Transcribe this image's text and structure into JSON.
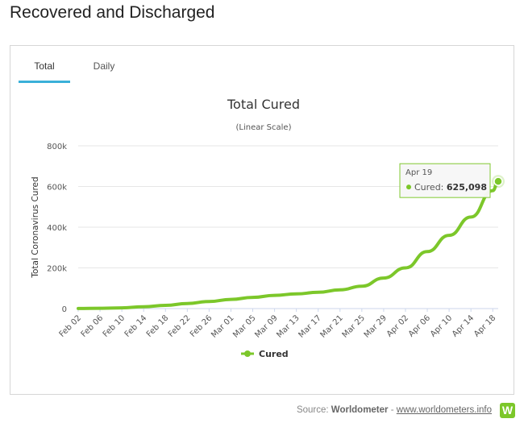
{
  "page": {
    "title": "Recovered and Discharged"
  },
  "tabs": [
    {
      "label": "Total",
      "active": true
    },
    {
      "label": "Daily",
      "active": false
    }
  ],
  "chart_data": {
    "type": "line",
    "title": "Total Cured",
    "subtitle": "(Linear Scale)",
    "ylabel": "Total Coronavirus Cured",
    "xlabel": "",
    "ylim": [
      0,
      800000
    ],
    "y_ticks": [
      0,
      200000,
      400000,
      600000,
      800000
    ],
    "y_tick_labels": [
      "0",
      "200k",
      "400k",
      "600k",
      "800k"
    ],
    "x_tick_labels": [
      "Feb 02",
      "Feb 06",
      "Feb 10",
      "Feb 14",
      "Feb 18",
      "Feb 22",
      "Feb 26",
      "Mar 01",
      "Mar 05",
      "Mar 09",
      "Mar 13",
      "Mar 17",
      "Mar 21",
      "Mar 25",
      "Mar 29",
      "Apr 02",
      "Apr 06",
      "Apr 10",
      "Apr 14",
      "Apr 18"
    ],
    "grid": true,
    "legend": {
      "position": "bottom-center"
    },
    "color": "#7cc72a",
    "series": [
      {
        "name": "Cured",
        "x": [
          "Feb 02",
          "Feb 06",
          "Feb 10",
          "Feb 14",
          "Feb 18",
          "Feb 22",
          "Feb 26",
          "Mar 01",
          "Mar 05",
          "Mar 09",
          "Mar 13",
          "Mar 17",
          "Mar 21",
          "Mar 25",
          "Mar 29",
          "Apr 02",
          "Apr 06",
          "Apr 10",
          "Apr 14",
          "Apr 18",
          "Apr 19"
        ],
        "values": [
          500,
          1500,
          3500,
          9000,
          16000,
          25000,
          35000,
          45000,
          55000,
          65000,
          72000,
          80000,
          92000,
          110000,
          150000,
          200000,
          280000,
          360000,
          450000,
          580000,
          625098
        ]
      }
    ],
    "tooltip": {
      "date": "Apr 19",
      "series": "Cured",
      "value_label": "625,098"
    }
  },
  "footer": {
    "source_prefix": "Source:",
    "source_name": "Worldometer",
    "separator": "-",
    "source_link": "www.worldometers.info",
    "logo_letter": "W"
  }
}
